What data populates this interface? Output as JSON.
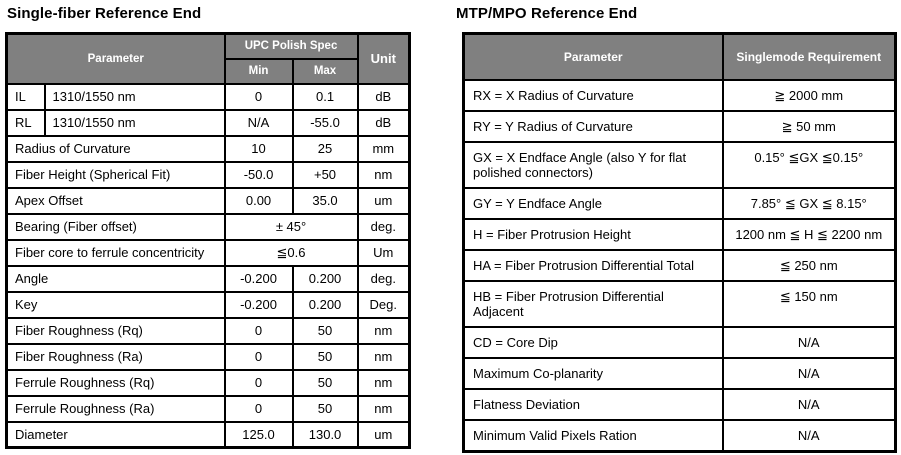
{
  "colors": {
    "header_bg": "#808080",
    "header_text": "#ffffff",
    "border": "#000000",
    "page_bg": "#ffffff"
  },
  "left_table": {
    "title": "Single-fiber Reference End",
    "headers": {
      "parameter": "Parameter",
      "group": "UPC Polish Spec",
      "min": "Min",
      "max": "Max",
      "unit": "Unit"
    },
    "rows": [
      {
        "abbr": "IL",
        "param": "1310/1550 nm",
        "min": "0",
        "max": "0.1",
        "unit": "dB"
      },
      {
        "abbr": "RL",
        "param": "1310/1550 nm",
        "min": "N/A",
        "max": "-55.0",
        "unit": "dB"
      },
      {
        "param": "Radius of Curvature",
        "min": "10",
        "max": "25",
        "unit": "mm"
      },
      {
        "param": "Fiber Height (Spherical Fit)",
        "min": "-50.0",
        "max": "+50",
        "unit": "nm"
      },
      {
        "param": "Apex Offset",
        "min": "0.00",
        "max": "35.0",
        "unit": "um"
      },
      {
        "param": "Bearing (Fiber offset)",
        "span": "± 45°",
        "unit": "deg."
      },
      {
        "param": "Fiber core to ferrule concentricity",
        "span": "≦0.6",
        "unit": "Um"
      },
      {
        "param": "Angle",
        "min": "-0.200",
        "max": "0.200",
        "unit": "deg."
      },
      {
        "param": "Key",
        "min": "-0.200",
        "max": "0.200",
        "unit": "Deg."
      },
      {
        "param": "Fiber Roughness (Rq)",
        "min": "0",
        "max": "50",
        "unit": "nm"
      },
      {
        "param": "Fiber Roughness (Ra)",
        "min": "0",
        "max": "50",
        "unit": "nm"
      },
      {
        "param": "Ferrule Roughness (Rq)",
        "min": "0",
        "max": "50",
        "unit": "nm"
      },
      {
        "param": "Ferrule Roughness (Ra)",
        "min": "0",
        "max": "50",
        "unit": "nm"
      },
      {
        "param": "Diameter",
        "min": "125.0",
        "max": "130.0",
        "unit": "um"
      }
    ]
  },
  "right_table": {
    "title": "MTP/MPO Reference End",
    "headers": {
      "parameter": "Parameter",
      "requirement": "Singlemode Requirement"
    },
    "rows": [
      {
        "param": "RX = X Radius of Curvature",
        "req": "≧ 2000 mm"
      },
      {
        "param": "RY = Y Radius of Curvature",
        "req": "≧ 50 mm"
      },
      {
        "param": "GX = X Endface Angle (also Y for flat polished connectors)",
        "req": "0.15° ≦GX ≦0.15°"
      },
      {
        "param": "GY = Y Endface Angle",
        "req": "7.85° ≦ GX ≦ 8.15°"
      },
      {
        "param": "H = Fiber Protrusion Height",
        "req": "1200 nm ≦ H ≦ 2200 nm"
      },
      {
        "param": "HA = Fiber Protrusion Differential Total",
        "req": "≦ 250 nm"
      },
      {
        "param": "HB = Fiber Protrusion Differential Adjacent",
        "req": "≦ 150 nm"
      },
      {
        "param": "CD = Core Dip",
        "req": "N/A"
      },
      {
        "param": "Maximum Co-planarity",
        "req": "N/A"
      },
      {
        "param": "Flatness Deviation",
        "req": "N/A"
      },
      {
        "param": "Minimum Valid Pixels Ration",
        "req": "N/A"
      }
    ]
  }
}
